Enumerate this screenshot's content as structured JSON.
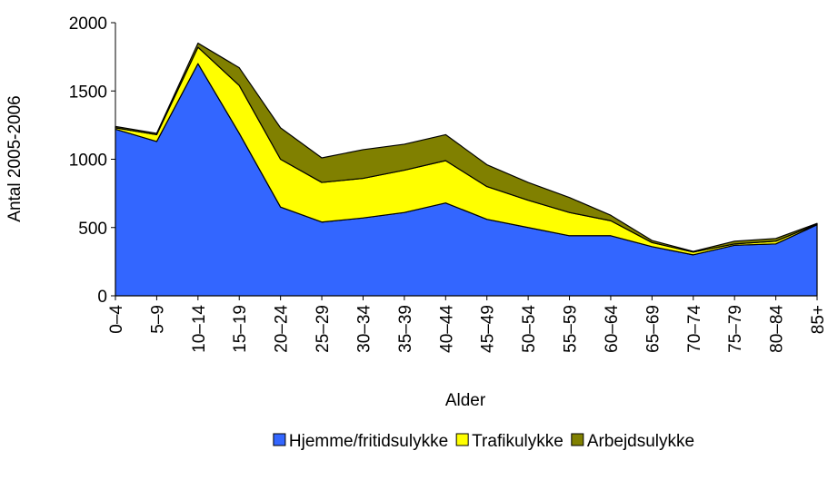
{
  "chart_data": {
    "type": "area",
    "stacked": true,
    "y_label": "Antal 2005-2006",
    "x_label": "Alder",
    "categories": [
      "0–4",
      "5–9",
      "10–14",
      "15–19",
      "20–24",
      "25–29",
      "30–34",
      "35–39",
      "40–44",
      "45–49",
      "50–54",
      "55–59",
      "60–64",
      "65–69",
      "70–74",
      "75–79",
      "80–84",
      "85+"
    ],
    "series": [
      {
        "name": "Hjemme/fritidsulykke",
        "color": "#3366ff",
        "values": [
          1220,
          1130,
          1700,
          1190,
          650,
          540,
          570,
          610,
          680,
          560,
          500,
          440,
          440,
          360,
          300,
          370,
          380,
          520
        ]
      },
      {
        "name": "Trafikulykke",
        "color": "#ffff00",
        "values": [
          10,
          50,
          120,
          350,
          350,
          290,
          290,
          310,
          310,
          240,
          200,
          170,
          110,
          30,
          20,
          10,
          20,
          5
        ]
      },
      {
        "name": "Arbejdsulykke",
        "color": "#808000",
        "values": [
          10,
          10,
          30,
          130,
          230,
          180,
          210,
          190,
          190,
          160,
          130,
          110,
          40,
          15,
          5,
          20,
          20,
          5
        ]
      }
    ],
    "ylim": [
      0,
      2000
    ],
    "yticks": [
      0,
      500,
      1000,
      1500,
      2000
    ],
    "legend": "bottom"
  }
}
